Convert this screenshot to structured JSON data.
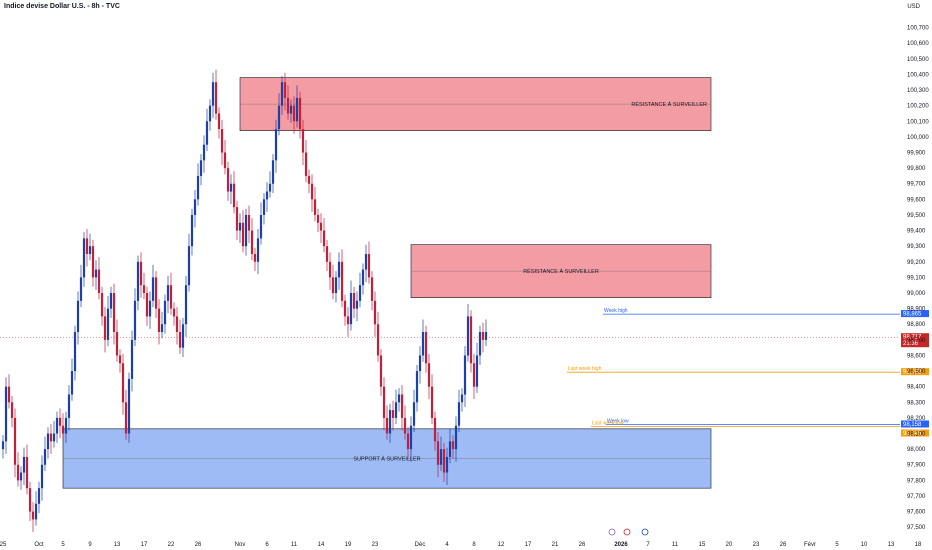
{
  "header": {
    "title": "Indice devise Dollar U.S. - 8h - TVC",
    "currency": "USD"
  },
  "chart_data": {
    "type": "candlestick",
    "ylim": [
      97.45,
      100.8
    ],
    "y_ticks": [
      100.7,
      100.6,
      100.5,
      100.4,
      100.3,
      100.2,
      100.1,
      100.0,
      99.9,
      99.8,
      99.7,
      99.6,
      99.5,
      99.4,
      99.3,
      99.2,
      99.1,
      99.0,
      98.9,
      98.8,
      98.7,
      98.6,
      98.5,
      98.4,
      98.3,
      98.2,
      98.1,
      98.0,
      97.9,
      97.8,
      97.7,
      97.6,
      97.5
    ],
    "y_tick_labels": [
      "100,700",
      "100,600",
      "100,500",
      "100,400",
      "100,300",
      "100,200",
      "100,100",
      "100,000",
      "99,900",
      "99,800",
      "99,700",
      "99,600",
      "99,500",
      "99,400",
      "99,300",
      "99,200",
      "99,100",
      "99,000",
      "98,900",
      "98,800",
      "98,700",
      "98,600",
      "98,500",
      "98,400",
      "98,300",
      "98,200",
      "98,100",
      "98,000",
      "97,900",
      "97,800",
      "97,700",
      "97,600",
      "97,500"
    ],
    "x_ticks": [
      {
        "label": "25",
        "i": 0
      },
      {
        "label": "Oct",
        "i": 12
      },
      {
        "label": "5",
        "i": 20
      },
      {
        "label": "9",
        "i": 29
      },
      {
        "label": "13",
        "i": 38
      },
      {
        "label": "17",
        "i": 47
      },
      {
        "label": "22",
        "i": 56
      },
      {
        "label": "26",
        "i": 65
      },
      {
        "label": "Nov",
        "i": 79
      },
      {
        "label": "6",
        "i": 88
      },
      {
        "label": "11",
        "i": 97
      },
      {
        "label": "14",
        "i": 106
      },
      {
        "label": "19",
        "i": 115
      },
      {
        "label": "23",
        "i": 124
      },
      {
        "label": "Déc",
        "i": 139
      },
      {
        "label": "4",
        "i": 148
      },
      {
        "label": "8",
        "i": 157
      },
      {
        "label": "12",
        "i": 166
      },
      {
        "label": "17",
        "i": 175
      },
      {
        "label": "21",
        "i": 184
      },
      {
        "label": "26",
        "i": 193
      },
      {
        "label": "2026",
        "i": 206,
        "bold": true
      },
      {
        "label": "7",
        "i": 215
      },
      {
        "label": "11",
        "i": 224
      },
      {
        "label": "15",
        "i": 233
      },
      {
        "label": "20",
        "i": 242
      },
      {
        "label": "23",
        "i": 251
      },
      {
        "label": "26",
        "i": 260
      },
      {
        "label": "Févr",
        "i": 269
      },
      {
        "label": "5",
        "i": 278
      },
      {
        "label": "10",
        "i": 287
      },
      {
        "label": "13",
        "i": 296
      },
      {
        "label": "18",
        "i": 305
      },
      {
        "label": "22",
        "i": 314
      }
    ],
    "candles_close": [
      98.05,
      98.4,
      98.3,
      98.2,
      97.9,
      97.8,
      97.85,
      97.95,
      97.75,
      97.6,
      97.55,
      97.65,
      97.75,
      97.9,
      98.0,
      98.1,
      98.05,
      98.1,
      98.2,
      98.15,
      98.1,
      98.2,
      98.35,
      98.5,
      98.75,
      98.95,
      99.1,
      99.35,
      99.25,
      99.3,
      99.1,
      99.15,
      99.0,
      98.85,
      98.7,
      98.9,
      99.0,
      98.75,
      98.6,
      98.55,
      98.3,
      98.1,
      98.45,
      98.7,
      98.95,
      99.2,
      99.05,
      99.0,
      98.85,
      98.95,
      99.1,
      98.9,
      98.75,
      98.8,
      98.95,
      99.05,
      98.9,
      98.85,
      98.75,
      98.65,
      98.8,
      99.05,
      99.3,
      99.5,
      99.6,
      99.75,
      99.85,
      99.95,
      100.1,
      100.2,
      100.35,
      100.15,
      100.05,
      99.9,
      99.8,
      99.65,
      99.7,
      99.55,
      99.4,
      99.45,
      99.3,
      99.5,
      99.4,
      99.25,
      99.2,
      99.35,
      99.5,
      99.6,
      99.65,
      99.7,
      99.85,
      100.05,
      100.2,
      100.35,
      100.25,
      100.15,
      100.2,
      100.1,
      100.25,
      100.05,
      99.9,
      99.75,
      99.7,
      99.6,
      99.5,
      99.45,
      99.4,
      99.3,
      99.2,
      99.1,
      99.0,
      99.1,
      99.2,
      98.95,
      98.85,
      98.8,
      99.0,
      98.9,
      98.95,
      99.05,
      99.15,
      99.25,
      99.1,
      98.95,
      98.8,
      98.6,
      98.4,
      98.2,
      98.1,
      98.25,
      98.2,
      98.3,
      98.35,
      98.2,
      98.1,
      98.0,
      98.15,
      98.3,
      98.5,
      98.6,
      98.75,
      98.55,
      98.4,
      98.2,
      98.05,
      97.9,
      98.0,
      97.85,
      97.95,
      98.05,
      98.0,
      98.15,
      98.3,
      98.35,
      98.6,
      98.85,
      98.55,
      98.4,
      98.6,
      98.75,
      98.7,
      98.75
    ],
    "zones": [
      {
        "name": "RÉSISTANCE À SURVEILLER",
        "top": 100.38,
        "bottom": 100.04,
        "from_i": 79,
        "to_i": 236,
        "color": "#f28b94"
      },
      {
        "name": "RÉSISTANCE À SURVEILLER",
        "top": 99.31,
        "bottom": 98.97,
        "from_i": 136,
        "to_i": 236,
        "color": "#f28b94"
      },
      {
        "name": "SUPPORT À SURVEILLER",
        "top": 98.13,
        "bottom": 97.75,
        "from_i": 20,
        "to_i": 236,
        "color": "#8daff5"
      }
    ],
    "lines": [
      {
        "name": "Week high",
        "value": 98.865,
        "from_i": 200,
        "color": "#2962ff",
        "label": "98,865"
      },
      {
        "name": "Last week high",
        "value": 98.493,
        "from_i": 188,
        "color": "#f59d0c",
        "label": "98,493"
      },
      {
        "name": "Week low",
        "value": 98.158,
        "from_i": 201,
        "color": "#2962ff",
        "label": "98,158"
      },
      {
        "name": "Last week low",
        "value": 98.145,
        "from_i": 196,
        "color": "#f59d0c",
        "label": "98,145"
      }
    ],
    "current_price": {
      "value": 98.717,
      "label": "98,717",
      "countdown": "21:36",
      "color": "#c62828"
    }
  }
}
